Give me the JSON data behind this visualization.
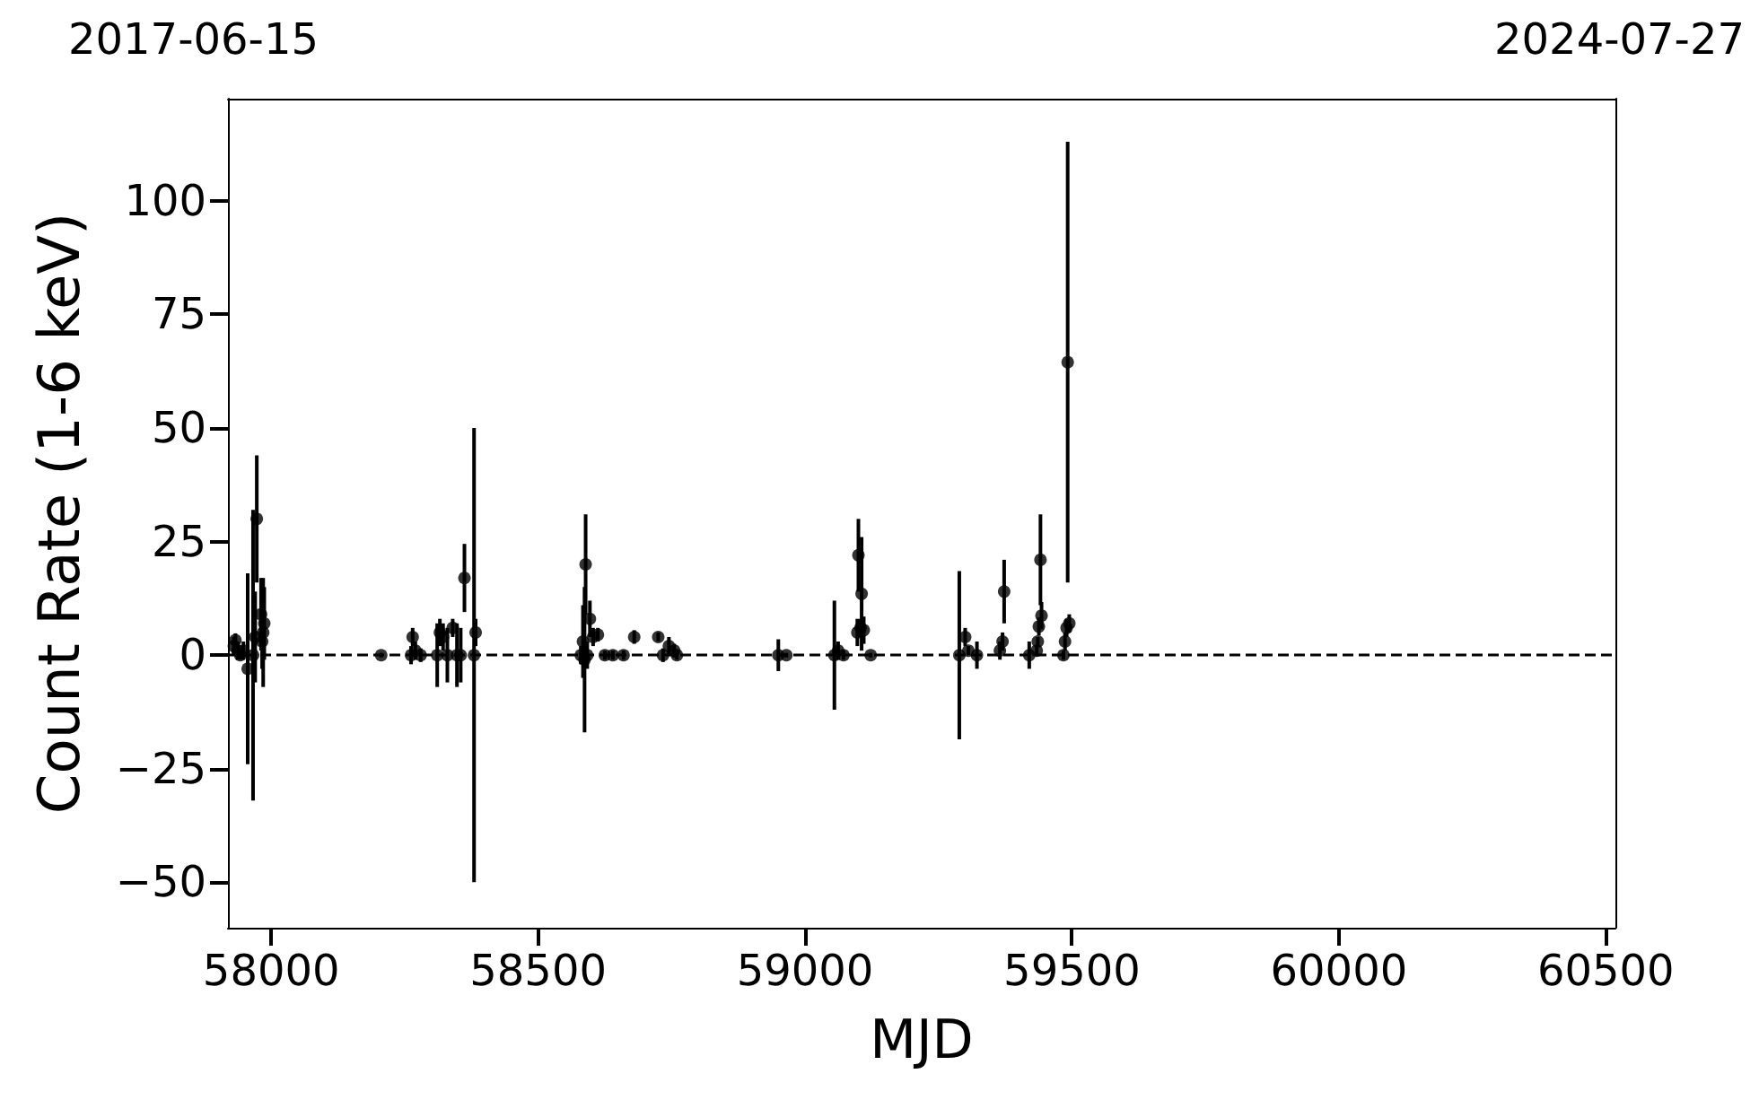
{
  "chart_data": {
    "type": "scatter",
    "xlabel": "MJD",
    "ylabel": "Count Rate (1-6 keV)",
    "x": [
      57930,
      57933,
      57937,
      57942,
      57948,
      57956,
      57966,
      57970,
      57973,
      57981,
      57983,
      57985,
      57987,
      58206,
      58262,
      58265,
      58270,
      58280,
      58311,
      58316,
      58322,
      58330,
      58340,
      58348,
      58355,
      58362,
      58380,
      58383,
      58580,
      58584,
      58587,
      58589,
      58592,
      58597,
      58603,
      58612,
      58625,
      58640,
      58660,
      58680,
      58725,
      58734,
      58745,
      58755,
      58760,
      58950,
      58965,
      59055,
      59062,
      59072,
      59098,
      59100,
      59104,
      59106,
      59110,
      59123,
      59289,
      59300,
      59306,
      59322,
      59365,
      59370,
      59373,
      59420,
      59434,
      59436,
      59438,
      59441,
      59443,
      59484,
      59487,
      59490,
      59492,
      59495
    ],
    "values": [
      2,
      3.3,
      1,
      0,
      1,
      -3,
      0,
      4,
      30,
      9,
      3,
      5,
      7,
      0,
      0,
      4,
      1,
      0,
      0,
      5,
      4,
      0,
      6,
      0,
      0,
      17,
      0,
      5,
      0,
      3,
      -1,
      20,
      0,
      8,
      4,
      4.5,
      0,
      0,
      0,
      4,
      4,
      0,
      2,
      1,
      0,
      0,
      0,
      0,
      1,
      0,
      5,
      22,
      6,
      13.5,
      5.5,
      0,
      0,
      4,
      1,
      0,
      1,
      3,
      14,
      0,
      1,
      3,
      6.3,
      21,
      8.7,
      0,
      3,
      6,
      64.5,
      7
    ],
    "errors": [
      2,
      1.5,
      2,
      1,
      2,
      21,
      32,
      10,
      14,
      8,
      6,
      12,
      8,
      0.5,
      2,
      2,
      2,
      1.5,
      7,
      3,
      3,
      6,
      2,
      7,
      6,
      7.5,
      50,
      3,
      2,
      8,
      16,
      11,
      3,
      4,
      2,
      1.5,
      1,
      1,
      1,
      1.5,
      1,
      1.5,
      2,
      1.5,
      1,
      3.5,
      0.5,
      12,
      2,
      1,
      3,
      8,
      2,
      12.5,
      3,
      0.5,
      18.5,
      2,
      1,
      3,
      2,
      2,
      7,
      3,
      1,
      1,
      2,
      10,
      3,
      1,
      2,
      2,
      48.5,
      2
    ],
    "color": "#000000",
    "marker": "circle",
    "xlim": [
      57919,
      60518
    ],
    "xticks": [
      58000,
      58500,
      59000,
      59500,
      60000,
      60500
    ],
    "annotations": [
      "2017-06-15",
      "2024-07-27"
    ],
    "ylim": [
      -60,
      122.5
    ],
    "yticks": [
      -50,
      -25,
      0,
      25,
      50,
      75,
      100
    ],
    "ref_lines": [
      {
        "axis": "y",
        "value": 0,
        "color": "#000000",
        "line_style": "dashed"
      }
    ]
  }
}
